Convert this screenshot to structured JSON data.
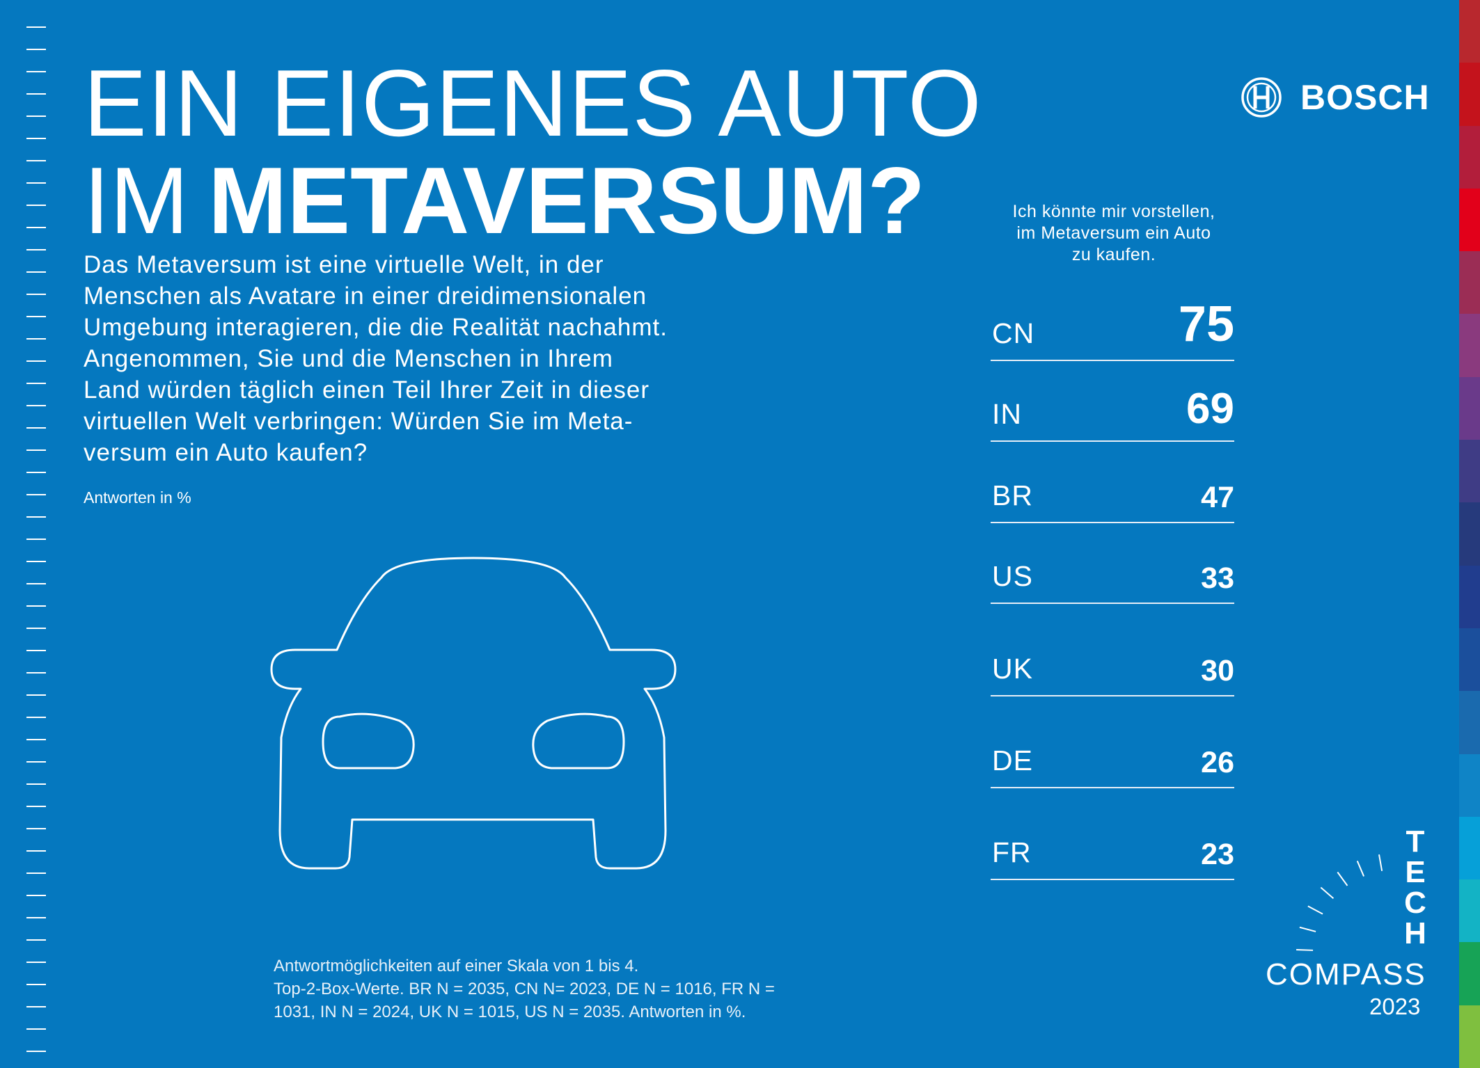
{
  "title": {
    "line1": "EIN EIGENES AUTO",
    "line2_prefix": "IM",
    "line2_bold": "METAVERSUM?"
  },
  "question": "Das Metaversum ist eine virtuelle Welt, in der\nMenschen als Avatare in einer dreidimensionalen\nUmgebung interagieren, die die Realität nachahmt.\nAngenommen, Sie und die Menschen in Ihrem\nLand würden täglich einen Teil Ihrer Zeit in dieser\nvirtuellen Welt verbringen: Würden Sie im Meta-\nversum ein Auto kaufen?",
  "answers_note": "Antworten in %",
  "logo": {
    "brand": "BOSCH",
    "icon": "bosch-armature-icon"
  },
  "ranking": {
    "heading": "Ich könnte mir vorstellen,\nim Metaversum ein Auto\nzu kaufen.",
    "items": [
      {
        "code": "CN",
        "value": "75"
      },
      {
        "code": "IN",
        "value": "69"
      },
      {
        "code": "BR",
        "value": "47"
      },
      {
        "code": "US",
        "value": "33"
      },
      {
        "code": "UK",
        "value": "30"
      },
      {
        "code": "DE",
        "value": "26"
      },
      {
        "code": "FR",
        "value": "23"
      }
    ]
  },
  "footnote": "Antwortmöglichkeiten auf einer Skala von 1 bis 4.\nTop-2-Box-Werte. BR N = 2035, CN N= 2023, DE N = 1016, FR N =\n1031, IN N = 2024, UK N = 1015, US N = 2035. Antworten in %.",
  "tech_compass": {
    "letters": [
      "T",
      "E",
      "C",
      "H"
    ],
    "word": "COMPASS",
    "year": "2023"
  },
  "icons": {
    "car": "car-outline-icon",
    "compass_ticks": "compass-dial-icon"
  },
  "colors": {
    "background": "#0578bf",
    "text": "#ffffff",
    "stripe": [
      "#b8282e",
      "#c4131c",
      "#b21e3b",
      "#e2001a",
      "#9b2d55",
      "#8a3a7e",
      "#6a3a8a",
      "#3f3c85",
      "#263a7c",
      "#213d8e",
      "#1b4f9c",
      "#1a6aae",
      "#0f84c6",
      "#06a0d8",
      "#13b3c5",
      "#17a356",
      "#7fbf3f"
    ]
  }
}
